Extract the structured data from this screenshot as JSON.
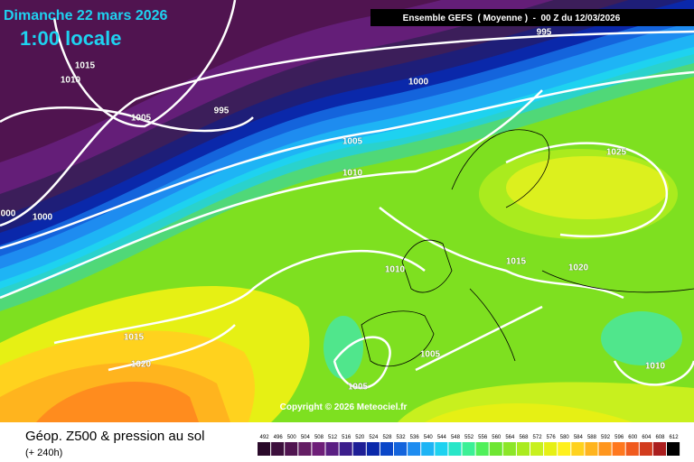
{
  "header": {
    "title": "Dimanche 22 mars 2026",
    "subtitle": "1:00 locale",
    "run": "Ensemble GEFS  ( Moyenne )  -  00 Z du 12/03/2026"
  },
  "isobar_labels": [
    "995",
    "1015",
    "1010",
    "1005",
    "995",
    "1000",
    "1005",
    "1010",
    "000",
    "1000",
    "1025",
    "1010",
    "1015",
    "1020",
    "1015",
    "1020",
    "1005",
    "1005",
    "1010"
  ],
  "copyright": "Copyright © 2026 Meteociel.fr",
  "footer": {
    "title": "Géop. Z500 & pression au sol",
    "lead": "(+ 240h)"
  },
  "scale": {
    "labels": [
      492,
      496,
      500,
      504,
      508,
      512,
      516,
      520,
      524,
      528,
      532,
      536,
      540,
      544,
      548,
      552,
      556,
      560,
      564,
      568,
      572,
      576,
      580,
      584,
      588,
      592,
      596,
      600,
      604,
      608,
      612
    ],
    "colors": [
      "#2a0a2a",
      "#3c0f3c",
      "#501450",
      "#641e64",
      "#6e1e78",
      "#5a1e82",
      "#3c1e8c",
      "#1e1e96",
      "#0a28aa",
      "#0a46c8",
      "#1464dc",
      "#1e8cf0",
      "#1eb4f5",
      "#1ed2f0",
      "#28e6c8",
      "#3cf096",
      "#50f05a",
      "#6ee632",
      "#8ce628",
      "#aaeb1e",
      "#c8f01e",
      "#e6f014",
      "#fff01e",
      "#ffd21e",
      "#ffb41e",
      "#ff961e",
      "#ff781e",
      "#f05a1e",
      "#d23c1e",
      "#aa1e1e",
      "#000000"
    ]
  }
}
